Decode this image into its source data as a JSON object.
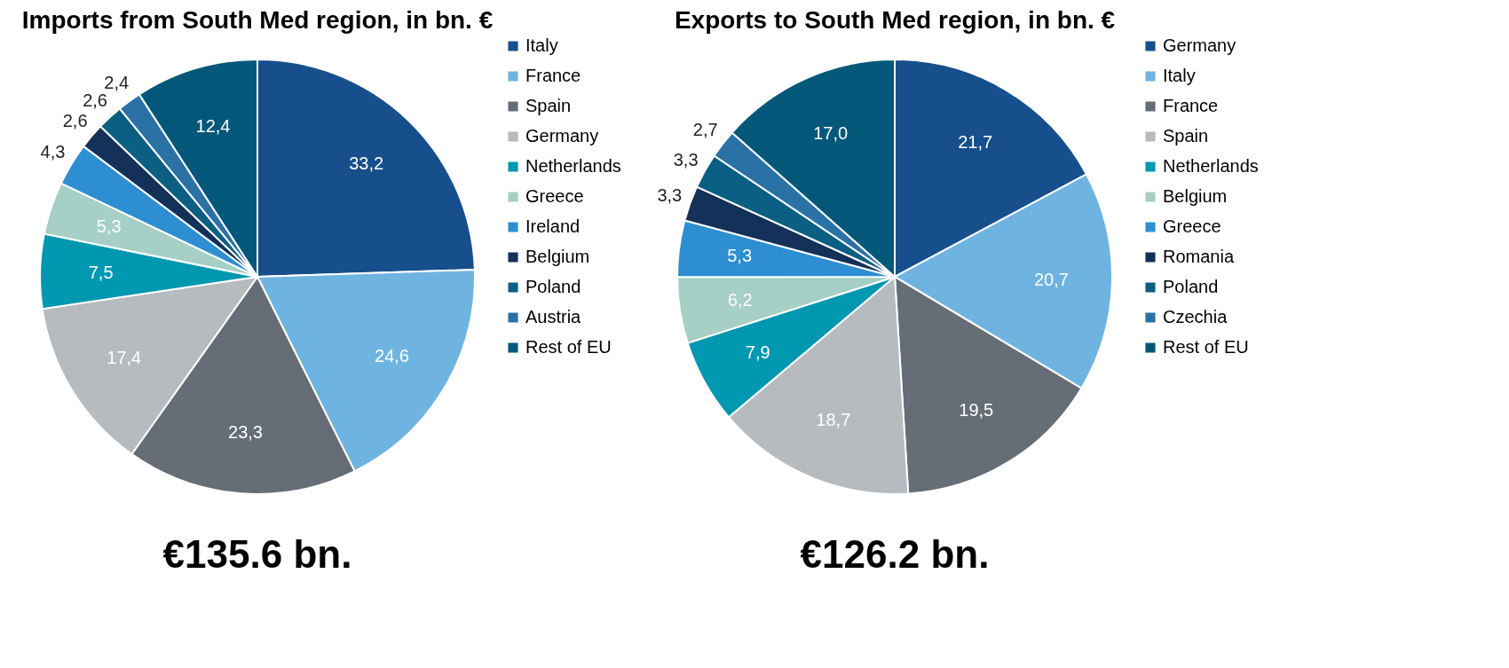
{
  "chart_data": [
    {
      "type": "pie",
      "title": "Imports from South Med region, in bn. €",
      "categories": [
        "Italy",
        "France",
        "Spain",
        "Germany",
        "Netherlands",
        "Greece",
        "Ireland",
        "Belgium",
        "Poland",
        "Austria",
        "Rest of EU"
      ],
      "values": [
        33.2,
        24.6,
        23.3,
        17.4,
        7.5,
        5.3,
        4.3,
        2.6,
        2.6,
        2.4,
        12.4
      ],
      "value_labels": [
        "33,2",
        "24,6",
        "23,3",
        "17,4",
        "7,5",
        "5,3",
        "4,3",
        "2,6",
        "2,6",
        "2,4",
        "12,4"
      ],
      "colors": [
        "#174f8c",
        "#6fb4e0",
        "#656d76",
        "#b6bbbf",
        "#0097b1",
        "#a6cfc5",
        "#2d8fd1",
        "#14315a",
        "#0a5f82",
        "#2a72a6",
        "#03587a"
      ],
      "legend": "right",
      "annotations": [
        "€135.6 bn."
      ]
    },
    {
      "type": "pie",
      "title": "Exports to South Med region,  in bn. €",
      "categories": [
        "Germany",
        "Italy",
        "France",
        "Spain",
        "Netherlands",
        "Belgium",
        "Greece",
        "Romania",
        "Poland",
        "Czechia",
        "Rest of EU"
      ],
      "values": [
        21.7,
        20.7,
        19.5,
        18.7,
        7.9,
        6.2,
        5.3,
        3.3,
        3.3,
        2.7,
        17.0
      ],
      "value_labels": [
        "21,7",
        "20,7",
        "19,5",
        "18,7",
        "7,9",
        "6,2",
        "5,3",
        "3,3",
        "3,3",
        "2,7",
        "17,0"
      ],
      "colors": [
        "#174f8c",
        "#6fb4e0",
        "#656d76",
        "#b6bbbf",
        "#0097b1",
        "#a6cfc5",
        "#2d8fd1",
        "#14315a",
        "#0a5f82",
        "#2a72a6",
        "#03587a"
      ],
      "legend": "right",
      "annotations": [
        "€126.2 bn."
      ]
    }
  ]
}
